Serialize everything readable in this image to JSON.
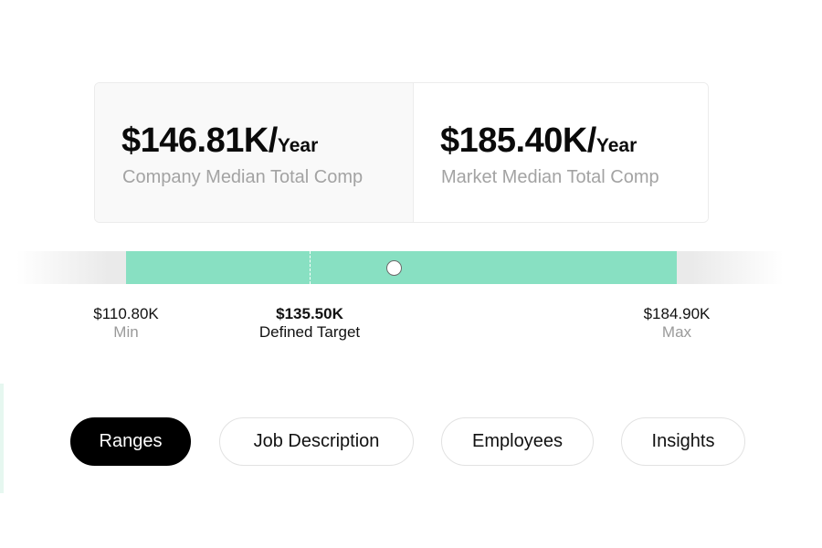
{
  "stats": {
    "company": {
      "value": "$146.81K/",
      "unit": "Year",
      "label": "Company Median Total Comp"
    },
    "market": {
      "value": "$185.40K/",
      "unit": "Year",
      "label": "Market Median Total Comp"
    }
  },
  "range": {
    "min": {
      "amount": "$110.80K",
      "caption": "Min",
      "value": 110.8
    },
    "target": {
      "amount": "$135.50K",
      "caption": "Defined Target",
      "value": 135.5
    },
    "max": {
      "amount": "$184.90K",
      "caption": "Max",
      "value": 184.9
    },
    "company_median_value": 146.81,
    "colors": {
      "fill": "#88e0c2",
      "track": "#eaeaea"
    }
  },
  "tabs": [
    {
      "label": "Ranges",
      "active": true
    },
    {
      "label": "Job Description",
      "active": false
    },
    {
      "label": "Employees",
      "active": false
    },
    {
      "label": "Insights",
      "active": false
    }
  ]
}
